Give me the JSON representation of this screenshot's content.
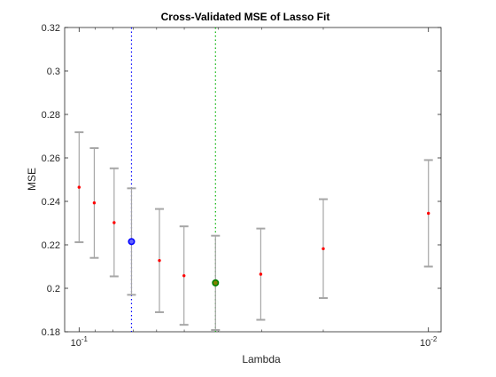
{
  "chart_data": {
    "type": "scatter",
    "title": "Cross-Validated MSE of Lasso Fit",
    "xlabel": "Lambda",
    "ylabel": "MSE",
    "xscale": "log",
    "xreversed": true,
    "xlim": [
      0.11,
      0.0092
    ],
    "ylim": [
      0.18,
      0.32
    ],
    "yticks": [
      0.18,
      0.2,
      0.22,
      0.24,
      0.26,
      0.28,
      0.3,
      0.32
    ],
    "ytick_labels": [
      "0.18",
      "0.2",
      "0.22",
      "0.24",
      "0.26",
      "0.28",
      "0.3",
      "0.32"
    ],
    "xticks": [
      0.1,
      0.01
    ],
    "xtick_base": "10",
    "xtick_exponents": [
      "-1",
      "-2"
    ],
    "grid": false,
    "series": [
      {
        "x": [
          0.1,
          0.0905,
          0.0794,
          0.0708,
          0.0589,
          0.0501,
          0.0407,
          0.0302,
          0.02,
          0.01
        ],
        "y": [
          0.2465,
          0.2393,
          0.2302,
          0.2215,
          0.2128,
          0.2058,
          0.2025,
          0.2065,
          0.2182,
          0.2345
        ],
        "lower": [
          0.2212,
          0.214,
          0.2055,
          0.197,
          0.189,
          0.1832,
          0.1808,
          0.1855,
          0.1955,
          0.21
        ],
        "upper": [
          0.2718,
          0.2645,
          0.2552,
          0.246,
          0.2365,
          0.2285,
          0.2242,
          0.2275,
          0.241,
          0.259
        ],
        "marker_color": "#ff0000",
        "errorbar_color": "#a6a6a6"
      }
    ],
    "highlights": [
      {
        "x": 0.0708,
        "y": 0.2215,
        "color": "#0000ff",
        "face": "#6666ff"
      },
      {
        "x": 0.0407,
        "y": 0.2025,
        "color": "#008000",
        "face": "#808000"
      }
    ],
    "vlines": [
      {
        "x": 0.0708,
        "color": "#0000ff",
        "style": "dotted"
      },
      {
        "x": 0.0407,
        "color": "#00b000",
        "style": "dotted"
      }
    ]
  }
}
